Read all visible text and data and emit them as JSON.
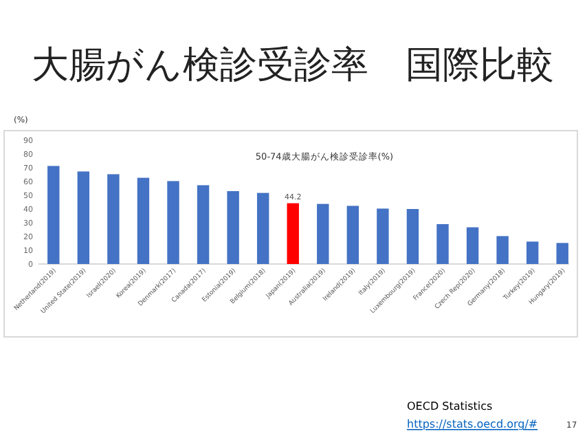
{
  "chart_data": {
    "type": "bar",
    "title": "大腸がん検診受診率　国際比較",
    "subtitle": "50-74歳大腸がん検診受診率(%)",
    "ylabel": "(%)",
    "categories": [
      "Netherland(2019)",
      "United State(2019)",
      "Israel(2020)",
      "Korea(2019)",
      "Denmark(2017)",
      "Canada(2017)",
      "Estonia(2019)",
      "Belgium(2018)",
      "Japan(2019)",
      "Australia(2019)",
      "Ireland(2019)",
      "Italy(2019)",
      "Luxembourg(2019)",
      "France(2020)",
      "Czech Rep(2020)",
      "Germany(2018)",
      "Turkey(2019)",
      "Hungary(2019)"
    ],
    "values": [
      71.3,
      67.3,
      65.3,
      62.7,
      60.3,
      57.3,
      53,
      51.7,
      44.2,
      43.7,
      42.3,
      40.3,
      40,
      29,
      26.7,
      20.3,
      16.3,
      15.3
    ],
    "colors": [
      "#4472c4",
      "#4472c4",
      "#4472c4",
      "#4472c4",
      "#4472c4",
      "#4472c4",
      "#4472c4",
      "#4472c4",
      "#ff0000",
      "#4472c4",
      "#4472c4",
      "#4472c4",
      "#4472c4",
      "#4472c4",
      "#4472c4",
      "#4472c4",
      "#4472c4",
      "#4472c4"
    ],
    "value_labels": [
      null,
      null,
      null,
      null,
      null,
      null,
      null,
      null,
      "44.2",
      null,
      null,
      null,
      null,
      null,
      null,
      null,
      null,
      null
    ],
    "ylim": [
      0,
      90
    ],
    "yticks": [
      0,
      10,
      20,
      30,
      40,
      50,
      60,
      70,
      80,
      90
    ],
    "annotations": [
      "OECD Statistics",
      "https://stats.oecd.org/#",
      "17"
    ]
  }
}
